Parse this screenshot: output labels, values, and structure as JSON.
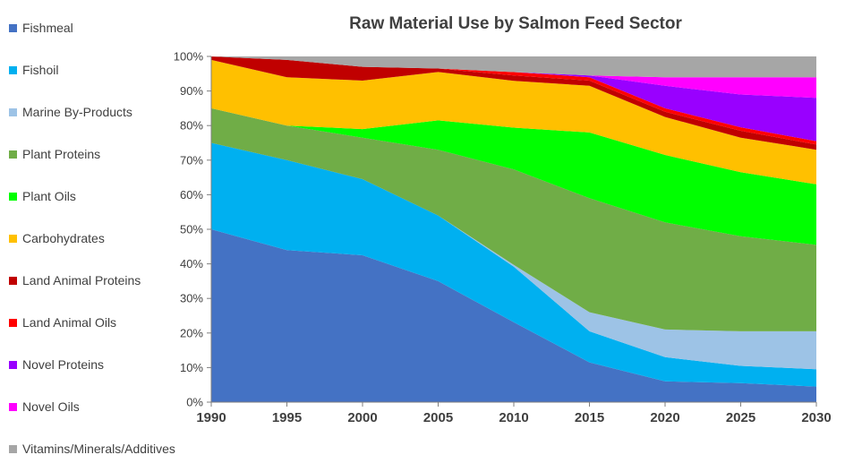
{
  "chart_data": {
    "type": "area",
    "stacked": true,
    "title": "Raw Material Use by Salmon Feed Sector",
    "xlabel": "",
    "ylabel": "",
    "x": [
      1990,
      1995,
      2000,
      2005,
      2010,
      2015,
      2020,
      2025,
      2030
    ],
    "ylim": [
      0,
      100
    ],
    "y_ticks": [
      "0%",
      "10%",
      "20%",
      "30%",
      "40%",
      "50%",
      "60%",
      "70%",
      "80%",
      "90%",
      "100%"
    ],
    "x_ticks": [
      "1990",
      "1995",
      "2000",
      "2005",
      "2010",
      "2015",
      "2020",
      "2025",
      "2030"
    ],
    "legend_position": "left",
    "series": [
      {
        "name": "Fishmeal",
        "color": "#4472C4",
        "values": [
          50,
          44,
          42.5,
          35,
          23,
          11.5,
          6,
          5.5,
          4.5
        ]
      },
      {
        "name": "Fishoil",
        "color": "#00B0F0",
        "values": [
          25,
          26,
          22,
          19,
          16,
          9,
          7,
          5,
          5
        ]
      },
      {
        "name": "Marine By-Products",
        "color": "#9DC3E6",
        "values": [
          0,
          0,
          0,
          0,
          0.5,
          5.5,
          8,
          10,
          11
        ]
      },
      {
        "name": "Plant Proteins",
        "color": "#70AD47",
        "values": [
          10,
          10,
          12,
          19,
          27.5,
          33,
          31,
          27.5,
          25
        ]
      },
      {
        "name": "Plant Oils",
        "color": "#00FF00",
        "values": [
          0,
          0,
          2.5,
          8.5,
          12,
          19,
          19.5,
          18.5,
          17.5
        ]
      },
      {
        "name": "Carbohydrates",
        "color": "#FFC000",
        "values": [
          14,
          14,
          14,
          14,
          13.5,
          13.5,
          11,
          10,
          10
        ]
      },
      {
        "name": "Land Animal Proteins",
        "color": "#C00000",
        "values": [
          1,
          5,
          4,
          1,
          1.5,
          1.5,
          1.5,
          2,
          1.5
        ]
      },
      {
        "name": "Land Animal Oils",
        "color": "#FF0000",
        "values": [
          0,
          0,
          0,
          0,
          1,
          1,
          1,
          1,
          1
        ]
      },
      {
        "name": "Novel Proteins",
        "color": "#9900FF",
        "values": [
          0,
          0,
          0,
          0,
          0,
          0.5,
          6.5,
          9.5,
          12.5
        ]
      },
      {
        "name": "Novel Oils",
        "color": "#FF00FF",
        "values": [
          0,
          0,
          0,
          0,
          0,
          0,
          2.5,
          5,
          6
        ]
      },
      {
        "name": "Vitamins/Minerals/Additives",
        "color": "#A6A6A6",
        "values": [
          0,
          1,
          3,
          3.5,
          4.5,
          5.5,
          6,
          6,
          6
        ]
      }
    ]
  }
}
